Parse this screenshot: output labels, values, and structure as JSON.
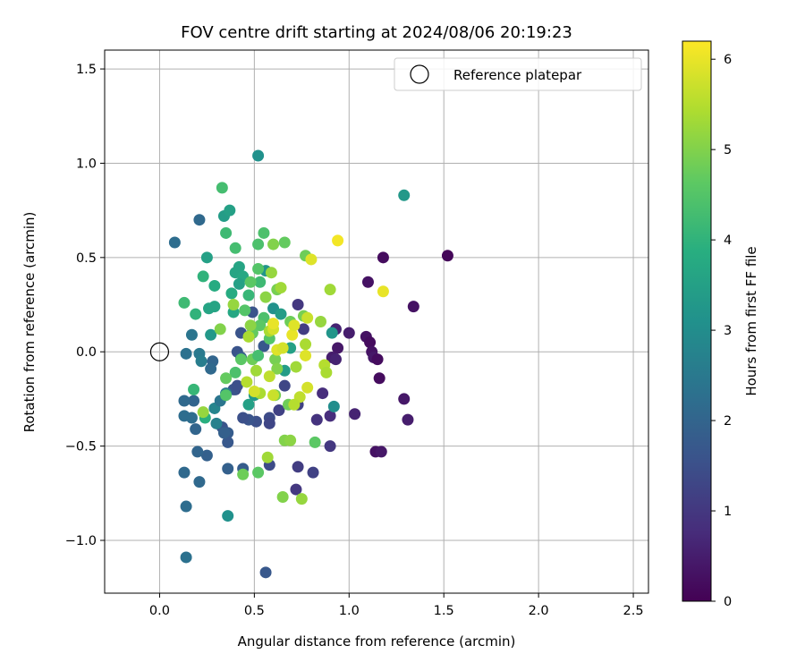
{
  "chart_data": {
    "type": "scatter",
    "title": "FOV centre drift starting at 2024/08/06 20:19:23",
    "xlabel": "Angular distance from reference (arcmin)",
    "ylabel": "Rotation from reference (arcmin)",
    "xlim": [
      -0.29,
      2.58
    ],
    "ylim": [
      -1.28,
      1.6
    ],
    "xticks": [
      0.0,
      0.5,
      1.0,
      1.5,
      2.0,
      2.5
    ],
    "xtick_labels": [
      "0.0",
      "0.5",
      "1.0",
      "1.5",
      "2.0",
      "2.5"
    ],
    "yticks": [
      -1.0,
      -0.5,
      0.0,
      0.5,
      1.0,
      1.5
    ],
    "ytick_labels": [
      "−1.0",
      "−0.5",
      "0.0",
      "0.5",
      "1.0",
      "1.5"
    ],
    "grid": true,
    "colormap": "viridis",
    "colorbar": {
      "label": "Hours from first FF file",
      "range": [
        0,
        6.2
      ],
      "ticks": [
        0,
        1,
        2,
        3,
        4,
        5,
        6
      ],
      "tick_labels": [
        "0",
        "1",
        "2",
        "3",
        "4",
        "5",
        "6"
      ]
    },
    "legend": {
      "position": "top-right",
      "entries": [
        "Reference platepar"
      ]
    },
    "reference_point": {
      "x": 0.0,
      "y": 0.0,
      "marker": "hollow-circle"
    },
    "points": [
      {
        "x": 1.52,
        "y": 0.51,
        "c": 0.1
      },
      {
        "x": 1.18,
        "y": 0.5,
        "c": 0.2
      },
      {
        "x": 1.34,
        "y": 0.24,
        "c": 0.3
      },
      {
        "x": 1.1,
        "y": 0.37,
        "c": 0.3
      },
      {
        "x": 1.0,
        "y": 0.1,
        "c": 0.5
      },
      {
        "x": 0.93,
        "y": 0.12,
        "c": 0.6
      },
      {
        "x": 0.94,
        "y": 0.02,
        "c": 0.4
      },
      {
        "x": 0.91,
        "y": -0.03,
        "c": 0.5
      },
      {
        "x": 0.93,
        "y": -0.04,
        "c": 0.6
      },
      {
        "x": 1.09,
        "y": 0.08,
        "c": 0.3
      },
      {
        "x": 1.11,
        "y": 0.05,
        "c": 0.2
      },
      {
        "x": 1.12,
        "y": 0.0,
        "c": 0.3
      },
      {
        "x": 1.13,
        "y": -0.03,
        "c": 0.4
      },
      {
        "x": 1.15,
        "y": -0.04,
        "c": 0.2
      },
      {
        "x": 1.16,
        "y": -0.14,
        "c": 0.2
      },
      {
        "x": 1.29,
        "y": -0.25,
        "c": 0.4
      },
      {
        "x": 1.31,
        "y": -0.36,
        "c": 0.5
      },
      {
        "x": 1.03,
        "y": -0.33,
        "c": 0.6
      },
      {
        "x": 1.14,
        "y": -0.53,
        "c": 0.3
      },
      {
        "x": 1.17,
        "y": -0.53,
        "c": 0.4
      },
      {
        "x": 0.86,
        "y": -0.22,
        "c": 0.8
      },
      {
        "x": 0.83,
        "y": -0.36,
        "c": 0.9
      },
      {
        "x": 0.9,
        "y": -0.34,
        "c": 0.8
      },
      {
        "x": 0.9,
        "y": -0.5,
        "c": 1.0
      },
      {
        "x": 0.81,
        "y": -0.64,
        "c": 1.2
      },
      {
        "x": 0.73,
        "y": -0.61,
        "c": 1.1
      },
      {
        "x": 0.72,
        "y": -0.73,
        "c": 1.0
      },
      {
        "x": 0.73,
        "y": 0.25,
        "c": 1.0
      },
      {
        "x": 0.76,
        "y": 0.12,
        "c": 1.1
      },
      {
        "x": 0.73,
        "y": -0.28,
        "c": 1.2
      },
      {
        "x": 0.66,
        "y": -0.18,
        "c": 1.3
      },
      {
        "x": 0.63,
        "y": -0.31,
        "c": 1.2
      },
      {
        "x": 0.58,
        "y": -0.35,
        "c": 1.4
      },
      {
        "x": 0.58,
        "y": -0.38,
        "c": 1.3
      },
      {
        "x": 0.58,
        "y": -0.6,
        "c": 1.4
      },
      {
        "x": 0.56,
        "y": -1.17,
        "c": 1.7
      },
      {
        "x": 0.51,
        "y": -0.37,
        "c": 1.5
      },
      {
        "x": 0.47,
        "y": -0.36,
        "c": 1.6
      },
      {
        "x": 0.44,
        "y": -0.35,
        "c": 1.5
      },
      {
        "x": 0.36,
        "y": -0.43,
        "c": 1.8
      },
      {
        "x": 0.36,
        "y": -0.48,
        "c": 1.7
      },
      {
        "x": 0.33,
        "y": -0.4,
        "c": 1.6
      },
      {
        "x": 0.36,
        "y": -0.62,
        "c": 1.9
      },
      {
        "x": 0.44,
        "y": -0.62,
        "c": 1.8
      },
      {
        "x": 0.4,
        "y": -0.2,
        "c": 1.4
      },
      {
        "x": 0.39,
        "y": -0.2,
        "c": 1.6
      },
      {
        "x": 0.41,
        "y": -0.18,
        "c": 1.5
      },
      {
        "x": 0.41,
        "y": 0.0,
        "c": 1.6
      },
      {
        "x": 0.43,
        "y": -0.03,
        "c": 1.8
      },
      {
        "x": 0.49,
        "y": 0.1,
        "c": 1.5
      },
      {
        "x": 0.49,
        "y": 0.21,
        "c": 1.6
      },
      {
        "x": 0.55,
        "y": 0.03,
        "c": 1.7
      },
      {
        "x": 0.43,
        "y": 0.1,
        "c": 1.6
      },
      {
        "x": 0.34,
        "y": -0.43,
        "c": 1.9
      },
      {
        "x": 0.28,
        "y": -0.05,
        "c": 2.0
      },
      {
        "x": 0.27,
        "y": -0.09,
        "c": 2.1
      },
      {
        "x": 0.25,
        "y": -0.55,
        "c": 1.9
      },
      {
        "x": 0.2,
        "y": -0.53,
        "c": 2.0
      },
      {
        "x": 0.21,
        "y": -0.69,
        "c": 2.1
      },
      {
        "x": 0.13,
        "y": -0.64,
        "c": 2.1
      },
      {
        "x": 0.14,
        "y": -0.82,
        "c": 2.2
      },
      {
        "x": 0.14,
        "y": -1.09,
        "c": 2.3
      },
      {
        "x": 0.18,
        "y": -0.26,
        "c": 2.0
      },
      {
        "x": 0.13,
        "y": -0.26,
        "c": 2.1
      },
      {
        "x": 0.13,
        "y": -0.34,
        "c": 2.2
      },
      {
        "x": 0.17,
        "y": -0.35,
        "c": 2.2
      },
      {
        "x": 0.19,
        "y": -0.41,
        "c": 2.0
      },
      {
        "x": 0.14,
        "y": -0.01,
        "c": 2.3
      },
      {
        "x": 0.17,
        "y": 0.09,
        "c": 2.4
      },
      {
        "x": 0.21,
        "y": -0.01,
        "c": 2.5
      },
      {
        "x": 0.22,
        "y": -0.05,
        "c": 2.6
      },
      {
        "x": 0.21,
        "y": 0.7,
        "c": 2.1
      },
      {
        "x": 0.08,
        "y": 0.58,
        "c": 2.2
      },
      {
        "x": 0.3,
        "y": -0.38,
        "c": 2.7
      },
      {
        "x": 0.29,
        "y": -0.3,
        "c": 2.8
      },
      {
        "x": 0.32,
        "y": -0.26,
        "c": 2.4
      },
      {
        "x": 0.35,
        "y": -0.22,
        "c": 2.6
      },
      {
        "x": 0.36,
        "y": -0.87,
        "c": 3.1
      },
      {
        "x": 0.52,
        "y": 1.04,
        "c": 3.1
      },
      {
        "x": 1.29,
        "y": 0.83,
        "c": 3.3
      },
      {
        "x": 0.91,
        "y": 0.1,
        "c": 3.2
      },
      {
        "x": 0.92,
        "y": -0.29,
        "c": 3.0
      },
      {
        "x": 0.6,
        "y": 0.23,
        "c": 3.1
      },
      {
        "x": 0.56,
        "y": 0.43,
        "c": 3.2
      },
      {
        "x": 0.64,
        "y": 0.2,
        "c": 3.4
      },
      {
        "x": 0.69,
        "y": 0.02,
        "c": 3.5
      },
      {
        "x": 0.66,
        "y": -0.1,
        "c": 3.4
      },
      {
        "x": 0.5,
        "y": -0.23,
        "c": 3.3
      },
      {
        "x": 0.47,
        "y": -0.28,
        "c": 3.5
      },
      {
        "x": 0.42,
        "y": 0.45,
        "c": 3.6
      },
      {
        "x": 0.4,
        "y": 0.42,
        "c": 3.6
      },
      {
        "x": 0.44,
        "y": 0.4,
        "c": 3.7
      },
      {
        "x": 0.42,
        "y": 0.36,
        "c": 3.5
      },
      {
        "x": 0.38,
        "y": 0.31,
        "c": 3.8
      },
      {
        "x": 0.39,
        "y": 0.21,
        "c": 3.7
      },
      {
        "x": 0.29,
        "y": 0.24,
        "c": 3.6
      },
      {
        "x": 0.26,
        "y": 0.23,
        "c": 3.6
      },
      {
        "x": 0.27,
        "y": 0.09,
        "c": 3.3
      },
      {
        "x": 0.24,
        "y": -0.35,
        "c": 3.9
      },
      {
        "x": 0.25,
        "y": 0.5,
        "c": 3.5
      },
      {
        "x": 0.29,
        "y": 0.35,
        "c": 3.8
      },
      {
        "x": 0.34,
        "y": 0.72,
        "c": 3.4
      },
      {
        "x": 0.37,
        "y": 0.75,
        "c": 3.5
      },
      {
        "x": 0.23,
        "y": 0.4,
        "c": 4.0
      },
      {
        "x": 0.19,
        "y": 0.2,
        "c": 4.0
      },
      {
        "x": 0.13,
        "y": 0.26,
        "c": 4.2
      },
      {
        "x": 0.18,
        "y": -0.2,
        "c": 4.1
      },
      {
        "x": 0.33,
        "y": 0.87,
        "c": 4.3
      },
      {
        "x": 0.35,
        "y": 0.63,
        "c": 4.2
      },
      {
        "x": 0.52,
        "y": 0.57,
        "c": 4.4
      },
      {
        "x": 0.55,
        "y": 0.63,
        "c": 4.4
      },
      {
        "x": 0.4,
        "y": 0.55,
        "c": 4.3
      },
      {
        "x": 0.47,
        "y": 0.3,
        "c": 4.1
      },
      {
        "x": 0.52,
        "y": 0.44,
        "c": 4.5
      },
      {
        "x": 0.53,
        "y": 0.37,
        "c": 4.2
      },
      {
        "x": 0.48,
        "y": 0.37,
        "c": 4.6
      },
      {
        "x": 0.45,
        "y": 0.22,
        "c": 4.5
      },
      {
        "x": 0.55,
        "y": 0.18,
        "c": 4.4
      },
      {
        "x": 0.53,
        "y": 0.14,
        "c": 4.6
      },
      {
        "x": 0.58,
        "y": 0.07,
        "c": 4.5
      },
      {
        "x": 0.49,
        "y": 0.1,
        "c": 4.7
      },
      {
        "x": 0.43,
        "y": -0.04,
        "c": 4.6
      },
      {
        "x": 0.49,
        "y": -0.04,
        "c": 4.8
      },
      {
        "x": 0.52,
        "y": -0.02,
        "c": 4.3
      },
      {
        "x": 0.4,
        "y": -0.11,
        "c": 4.4
      },
      {
        "x": 0.35,
        "y": -0.14,
        "c": 4.7
      },
      {
        "x": 0.35,
        "y": -0.23,
        "c": 4.5
      },
      {
        "x": 0.44,
        "y": -0.65,
        "c": 4.8
      },
      {
        "x": 0.52,
        "y": -0.64,
        "c": 4.6
      },
      {
        "x": 0.66,
        "y": 0.58,
        "c": 4.7
      },
      {
        "x": 0.77,
        "y": 0.51,
        "c": 4.8
      },
      {
        "x": 0.62,
        "y": 0.33,
        "c": 4.9
      },
      {
        "x": 0.69,
        "y": 0.16,
        "c": 4.8
      },
      {
        "x": 0.76,
        "y": 0.19,
        "c": 4.9
      },
      {
        "x": 0.61,
        "y": -0.04,
        "c": 4.9
      },
      {
        "x": 0.62,
        "y": -0.09,
        "c": 5.0
      },
      {
        "x": 0.61,
        "y": -0.23,
        "c": 4.9
      },
      {
        "x": 0.68,
        "y": -0.28,
        "c": 4.8
      },
      {
        "x": 0.82,
        "y": -0.48,
        "c": 4.6
      },
      {
        "x": 0.66,
        "y": -0.47,
        "c": 5.0
      },
      {
        "x": 0.69,
        "y": -0.47,
        "c": 5.1
      },
      {
        "x": 0.65,
        "y": -0.77,
        "c": 5.0
      },
      {
        "x": 0.75,
        "y": -0.78,
        "c": 5.2
      },
      {
        "x": 0.57,
        "y": -0.56,
        "c": 5.3
      },
      {
        "x": 0.6,
        "y": 0.57,
        "c": 5.0
      },
      {
        "x": 0.59,
        "y": 0.42,
        "c": 5.2
      },
      {
        "x": 0.56,
        "y": 0.29,
        "c": 5.1
      },
      {
        "x": 0.64,
        "y": 0.34,
        "c": 5.3
      },
      {
        "x": 0.58,
        "y": 0.11,
        "c": 5.4
      },
      {
        "x": 0.48,
        "y": 0.14,
        "c": 5.1
      },
      {
        "x": 0.39,
        "y": 0.25,
        "c": 5.2
      },
      {
        "x": 0.32,
        "y": 0.12,
        "c": 5.0
      },
      {
        "x": 0.47,
        "y": 0.08,
        "c": 5.4
      },
      {
        "x": 0.51,
        "y": -0.1,
        "c": 5.3
      },
      {
        "x": 0.46,
        "y": -0.16,
        "c": 5.5
      },
      {
        "x": 0.53,
        "y": -0.22,
        "c": 5.4
      },
      {
        "x": 0.23,
        "y": -0.32,
        "c": 5.2
      },
      {
        "x": 0.9,
        "y": 0.33,
        "c": 5.3
      },
      {
        "x": 0.85,
        "y": 0.16,
        "c": 5.2
      },
      {
        "x": 0.77,
        "y": 0.04,
        "c": 5.4
      },
      {
        "x": 0.72,
        "y": -0.08,
        "c": 5.3
      },
      {
        "x": 0.87,
        "y": -0.07,
        "c": 5.5
      },
      {
        "x": 0.88,
        "y": -0.11,
        "c": 5.4
      },
      {
        "x": 0.74,
        "y": -0.24,
        "c": 5.6
      },
      {
        "x": 0.71,
        "y": -0.28,
        "c": 5.5
      },
      {
        "x": 0.6,
        "y": -0.23,
        "c": 5.7
      },
      {
        "x": 0.58,
        "y": -0.13,
        "c": 5.6
      },
      {
        "x": 0.5,
        "y": -0.21,
        "c": 5.8
      },
      {
        "x": 0.6,
        "y": 0.12,
        "c": 5.8
      },
      {
        "x": 0.62,
        "y": 0.01,
        "c": 5.9
      },
      {
        "x": 0.65,
        "y": 0.02,
        "c": 5.8
      },
      {
        "x": 0.7,
        "y": 0.09,
        "c": 6.0
      },
      {
        "x": 0.71,
        "y": 0.14,
        "c": 5.9
      },
      {
        "x": 0.78,
        "y": 0.18,
        "c": 5.7
      },
      {
        "x": 0.8,
        "y": 0.49,
        "c": 5.9
      },
      {
        "x": 0.94,
        "y": 0.59,
        "c": 6.1
      },
      {
        "x": 1.18,
        "y": 0.32,
        "c": 6.0
      },
      {
        "x": 0.77,
        "y": -0.02,
        "c": 5.9
      },
      {
        "x": 0.78,
        "y": -0.19,
        "c": 5.8
      },
      {
        "x": 0.6,
        "y": 0.15,
        "c": 6.0
      }
    ]
  }
}
